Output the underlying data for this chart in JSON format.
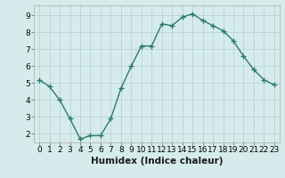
{
  "x": [
    0,
    1,
    2,
    3,
    4,
    5,
    6,
    7,
    8,
    9,
    10,
    11,
    12,
    13,
    14,
    15,
    16,
    17,
    18,
    19,
    20,
    21,
    22,
    23
  ],
  "y": [
    5.2,
    4.8,
    4.0,
    2.9,
    1.7,
    1.9,
    1.9,
    2.9,
    4.7,
    6.0,
    7.2,
    7.2,
    8.5,
    8.4,
    8.9,
    9.1,
    8.7,
    8.4,
    8.1,
    7.5,
    6.6,
    5.8,
    5.2,
    4.9
  ],
  "line_color": "#2d7a6a",
  "marker": "+",
  "marker_size": 4,
  "bg_color": "#d6ecec",
  "grid_color": "#b8d4d4",
  "xlabel": "Humidex (Indice chaleur)",
  "xlim": [
    -0.5,
    23.5
  ],
  "ylim": [
    1.5,
    9.6
  ],
  "yticks": [
    2,
    3,
    4,
    5,
    6,
    7,
    8,
    9
  ],
  "xticks": [
    0,
    1,
    2,
    3,
    4,
    5,
    6,
    7,
    8,
    9,
    10,
    11,
    12,
    13,
    14,
    15,
    16,
    17,
    18,
    19,
    20,
    21,
    22,
    23
  ],
  "xlabel_fontsize": 7.5,
  "tick_fontsize": 6.5,
  "line_width": 1.0
}
